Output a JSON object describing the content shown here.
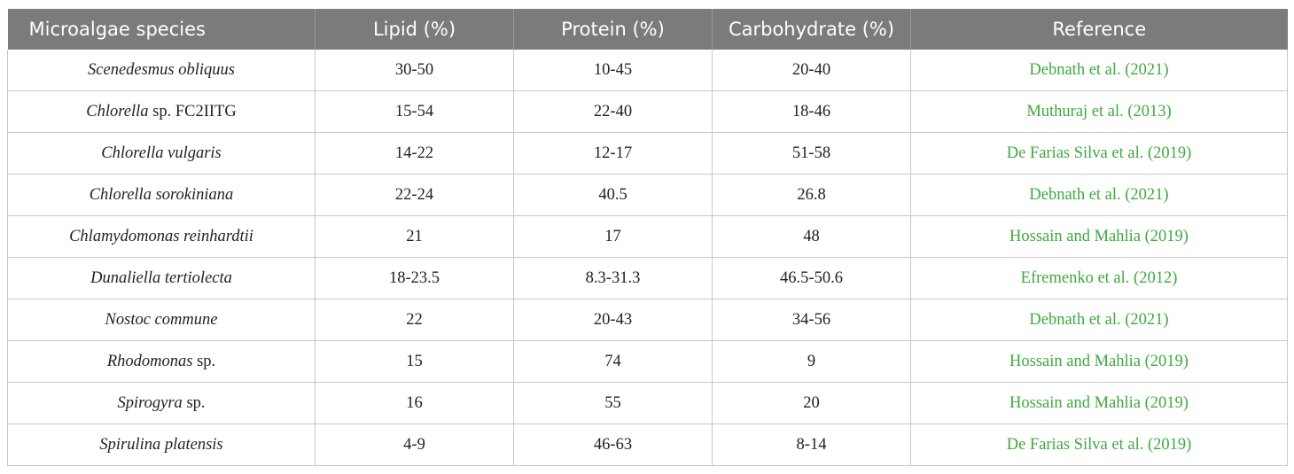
{
  "table": {
    "headers": [
      "Microalgae species",
      "Lipid (%)",
      "Protein (%)",
      "Carbohydrate (%)",
      "Reference"
    ],
    "rows": [
      {
        "species": "Scenedesmus obliquus",
        "suffix": "",
        "lipid": "30-50",
        "protein": "10-45",
        "carbohydrate": "20-40",
        "reference": "Debnath et al. (2021)"
      },
      {
        "species": "Chlorella",
        "suffix": " sp. FC2IITG",
        "lipid": "15-54",
        "protein": "22-40",
        "carbohydrate": "18-46",
        "reference": "Muthuraj et al. (2013)"
      },
      {
        "species": "Chlorella vulgaris",
        "suffix": "",
        "lipid": "14-22",
        "protein": "12-17",
        "carbohydrate": "51-58",
        "reference": "De Farias Silva et al. (2019)"
      },
      {
        "species": "Chlorella sorokiniana",
        "suffix": "",
        "lipid": "22-24",
        "protein": "40.5",
        "carbohydrate": "26.8",
        "reference": "Debnath et al. (2021)"
      },
      {
        "species": "Chlamydomonas reinhardtii",
        "suffix": "",
        "lipid": "21",
        "protein": "17",
        "carbohydrate": "48",
        "reference": "Hossain and Mahlia (2019)"
      },
      {
        "species": "Dunaliella tertiolecta",
        "suffix": "",
        "lipid": "18-23.5",
        "protein": "8.3-31.3",
        "carbohydrate": "46.5-50.6",
        "reference": "Efremenko et al. (2012)"
      },
      {
        "species": "Nostoc commune",
        "suffix": "",
        "lipid": "22",
        "protein": "20-43",
        "carbohydrate": "34-56",
        "reference": "Debnath et al. (2021)"
      },
      {
        "species": "Rhodomonas",
        "suffix": " sp.",
        "lipid": "15",
        "protein": "74",
        "carbohydrate": "9",
        "reference": "Hossain and Mahlia (2019)"
      },
      {
        "species": "Spirogyra",
        "suffix": " sp.",
        "lipid": "16",
        "protein": "55",
        "carbohydrate": "20",
        "reference": "Hossain and Mahlia (2019)"
      },
      {
        "species": "Spirulina platensis",
        "suffix": "",
        "lipid": "4-9",
        "protein": "46-63",
        "carbohydrate": "8-14",
        "reference": "De Farias Silva et al. (2019)"
      }
    ]
  },
  "colors": {
    "header_bg": "#7b7b7b",
    "reference_link": "#3ea93e",
    "grid": "#c8c8c8"
  }
}
